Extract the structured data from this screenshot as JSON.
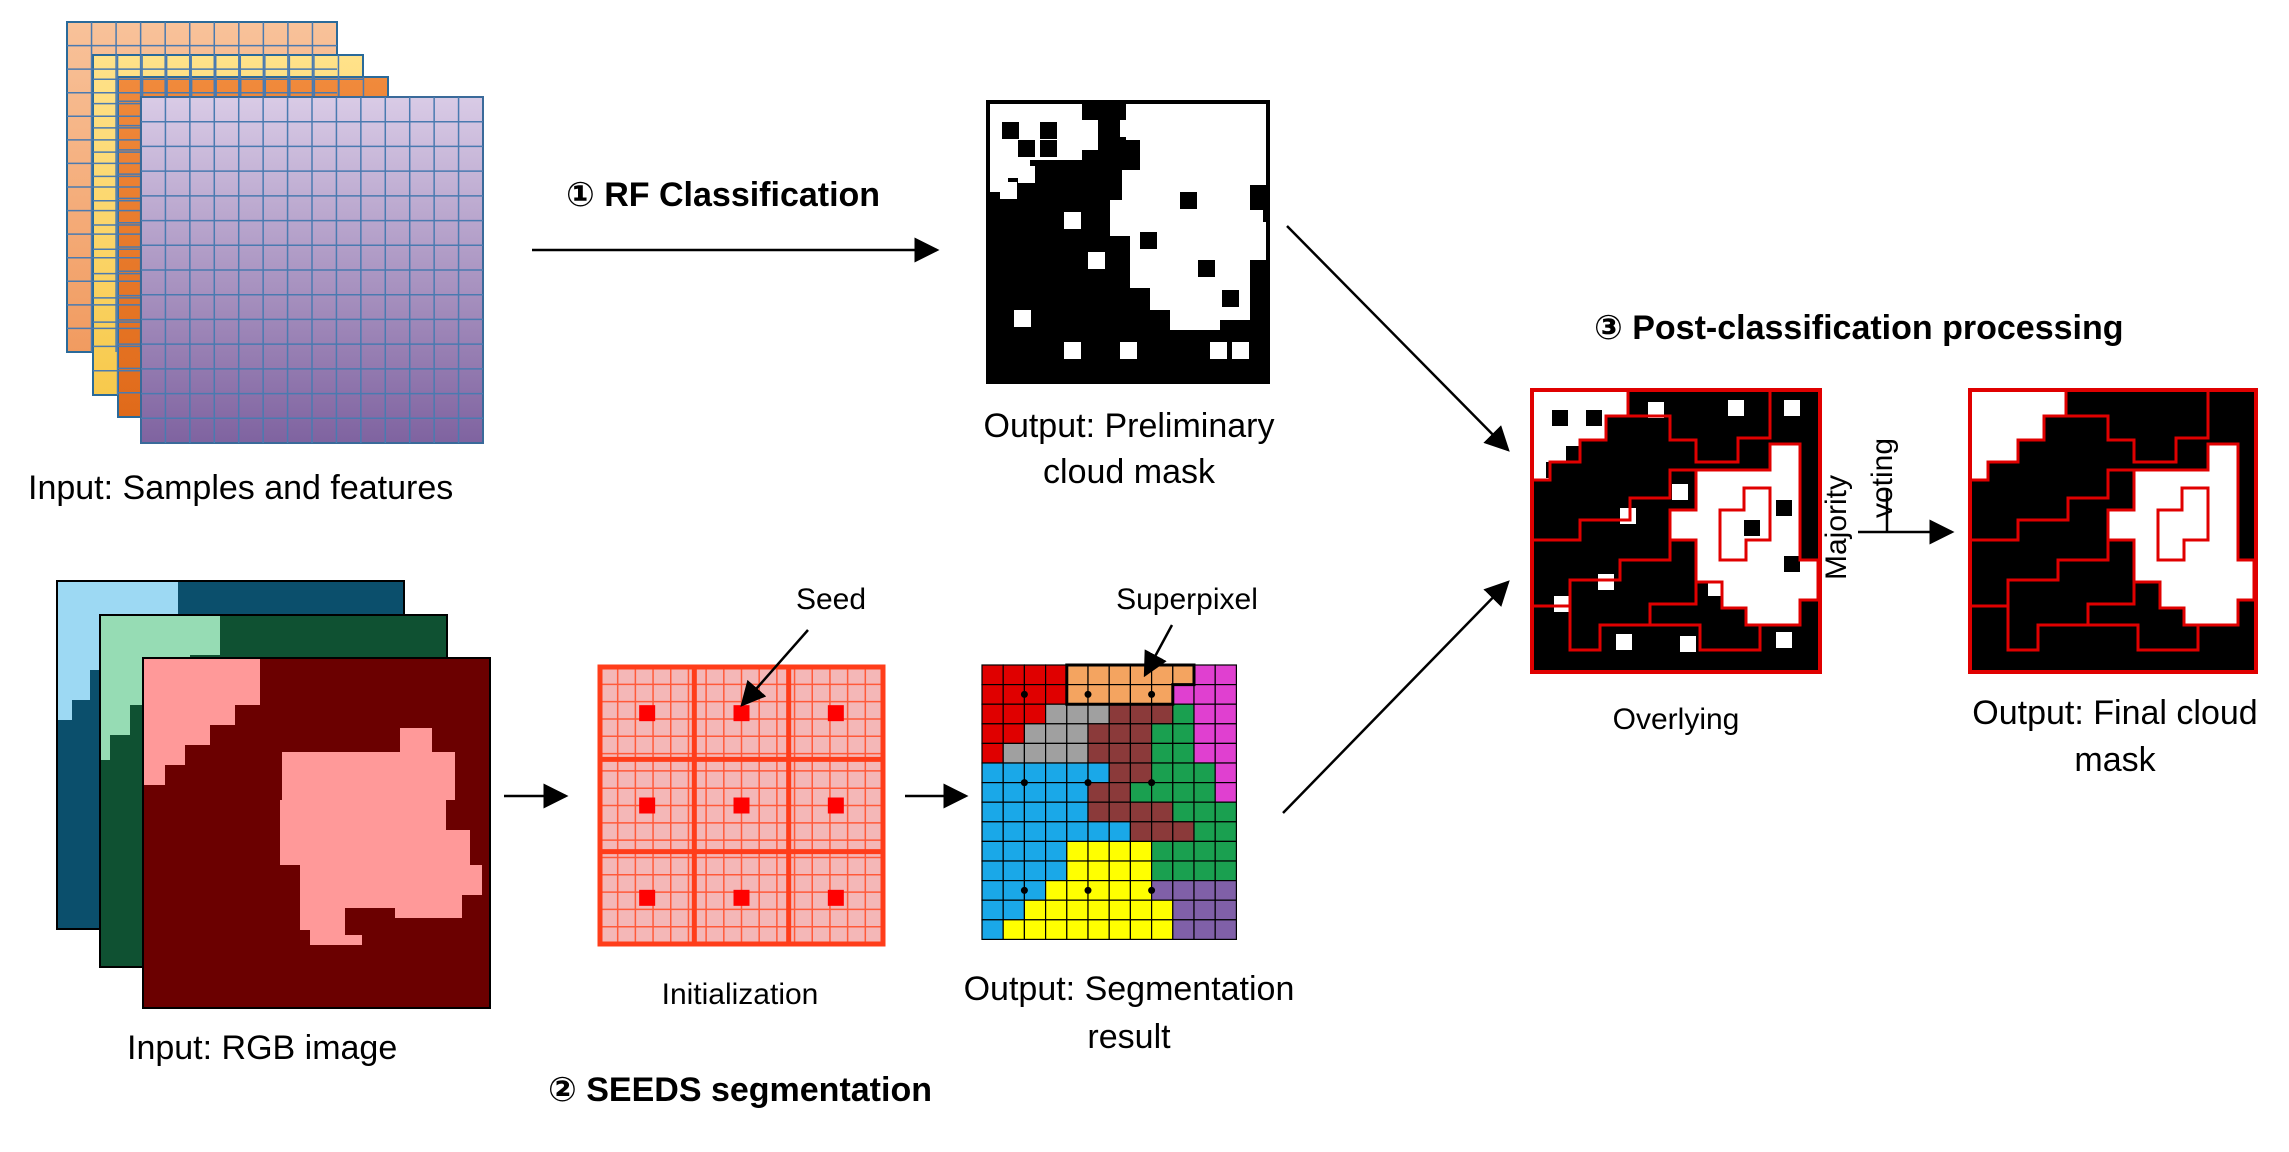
{
  "labels": {
    "input_samples": "Input: Samples and features",
    "input_rgb": "Input: RGB image",
    "prelim_line1": "Output: Preliminary",
    "prelim_line2": "cloud mask",
    "initialization": "Initialization",
    "seg_line1": "Output: Segmentation",
    "seg_line2": "result",
    "overlying": "Overlying",
    "final_line1": "Output: Final cloud",
    "final_line2": "mask",
    "seed": "Seed",
    "superpixel": "Superpixel",
    "majority": "Majority",
    "voting": "voting"
  },
  "steps": {
    "rf": "① RF Classification",
    "seeds": "② SEEDS segmentation",
    "post": "③ Post-classification processing"
  },
  "colors": {
    "stack_orange": "#f4b183",
    "stack_yellow": "#ffd966",
    "stack_dark_orange": "#ed7d31",
    "stack_purple_top": "#d9cbe6",
    "stack_purple_bottom": "#7f63a0",
    "rgb_light_blue": "#9dd9f3",
    "rgb_navy": "#0b4f6c",
    "rgb_mint": "#96dcb4",
    "rgb_dark_green": "#0f5132",
    "rgb_pink": "#ff9999",
    "rgb_maroon": "#6b0000",
    "init_fill": "#f4b7b7",
    "init_border": "#ff3d1a",
    "seed_red": "#ff0000",
    "boundary_red": "#e00000"
  },
  "segment_colors": {
    "r": "#e00000",
    "o": "#f4a460",
    "m": "#e040d0",
    "g": "#a0a0a0",
    "n": "#8b3a3a",
    "e": "#1aa050",
    "b": "#1aa8e8",
    "y": "#ffff00",
    "p": "#8060a8"
  }
}
